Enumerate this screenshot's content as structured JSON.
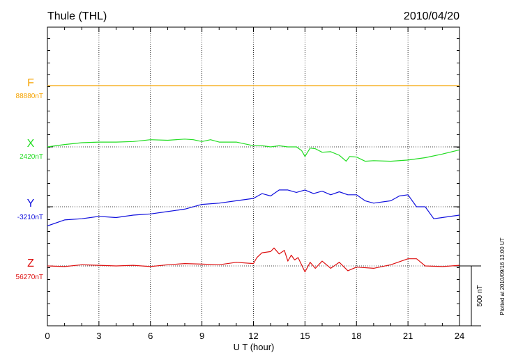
{
  "header": {
    "station": "Thule (THL)",
    "date": "2010/04/20"
  },
  "footer": {
    "plotted_note": "Plotted at 2010/09/16 13:00 UT"
  },
  "scale_bar": {
    "label": "500 nT",
    "value_nT": 500
  },
  "chart_data": {
    "type": "line",
    "xlabel": "U T (hour)",
    "xlim": [
      0,
      24
    ],
    "x_ticks": [
      0,
      3,
      6,
      9,
      12,
      15,
      18,
      21,
      24
    ],
    "grid": true,
    "series": [
      {
        "name": "F",
        "baseline_label": "88880nT",
        "baseline_nT": 88880,
        "color": "#f5a300",
        "x": [
          0,
          24
        ],
        "values": [
          88880,
          88880
        ]
      },
      {
        "name": "X",
        "baseline_label": "2420nT",
        "baseline_nT": 2420,
        "color": "#22dd22",
        "x": [
          0,
          1,
          2,
          3,
          4,
          5,
          6,
          7,
          8,
          8.5,
          9,
          9.5,
          10,
          11,
          12,
          12.5,
          13,
          13.5,
          14,
          14.5,
          14.8,
          15,
          15.3,
          15.6,
          16,
          16.5,
          17,
          17.4,
          17.6,
          18,
          18.5,
          19,
          20,
          21,
          22,
          23,
          24
        ],
        "values": [
          2420,
          2440,
          2455,
          2460,
          2460,
          2465,
          2480,
          2475,
          2485,
          2480,
          2465,
          2480,
          2460,
          2460,
          2430,
          2430,
          2420,
          2430,
          2420,
          2420,
          2390,
          2340,
          2410,
          2405,
          2375,
          2380,
          2350,
          2300,
          2340,
          2335,
          2300,
          2305,
          2300,
          2310,
          2330,
          2360,
          2395
        ]
      },
      {
        "name": "Y",
        "baseline_label": "-3210nT",
        "baseline_nT": -3210,
        "color": "#1010dd",
        "x": [
          0,
          1,
          2,
          3,
          4,
          5,
          6,
          7,
          8,
          9,
          10,
          11,
          12,
          12.5,
          13,
          13.5,
          14,
          14.5,
          15,
          15.5,
          16,
          16.5,
          17,
          17.5,
          18,
          18.5,
          19,
          20,
          20.5,
          21,
          21.5,
          22,
          22.5,
          23,
          24
        ],
        "values": [
          -3370,
          -3320,
          -3310,
          -3290,
          -3300,
          -3280,
          -3270,
          -3250,
          -3230,
          -3190,
          -3180,
          -3160,
          -3140,
          -3100,
          -3120,
          -3070,
          -3070,
          -3090,
          -3070,
          -3100,
          -3080,
          -3110,
          -3085,
          -3110,
          -3110,
          -3160,
          -3180,
          -3160,
          -3120,
          -3110,
          -3210,
          -3210,
          -3310,
          -3300,
          -3280
        ]
      },
      {
        "name": "Z",
        "baseline_label": "56270nT",
        "baseline_nT": 56270,
        "color": "#dd1010",
        "x": [
          0,
          1,
          2,
          3,
          4,
          5,
          6,
          7,
          8,
          9,
          10,
          11,
          12,
          12.2,
          12.5,
          13,
          13.2,
          13.5,
          13.8,
          14,
          14.2,
          14.4,
          14.6,
          15,
          15.3,
          15.6,
          16,
          16.5,
          17,
          17.5,
          18,
          19,
          20,
          21,
          21.5,
          22,
          23,
          24
        ],
        "values": [
          56270,
          56265,
          56280,
          56275,
          56270,
          56275,
          56265,
          56280,
          56290,
          56285,
          56280,
          56300,
          56290,
          56340,
          56380,
          56390,
          56420,
          56370,
          56400,
          56310,
          56360,
          56320,
          56340,
          56220,
          56300,
          56250,
          56310,
          56250,
          56300,
          56230,
          56260,
          56250,
          56280,
          56330,
          56330,
          56270,
          56265,
          56275
        ]
      }
    ]
  }
}
